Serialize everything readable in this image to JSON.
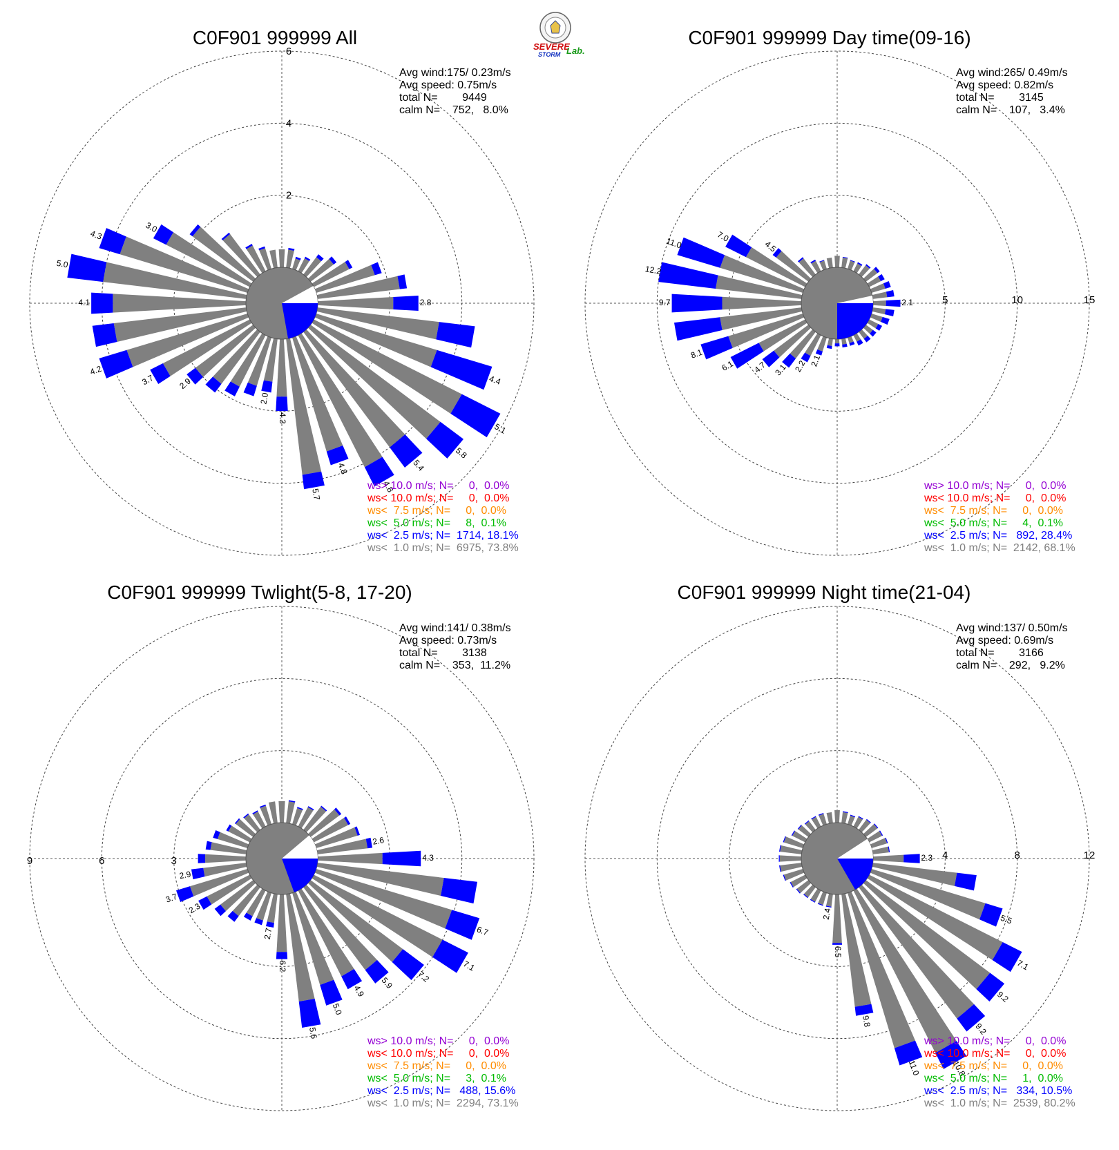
{
  "colors": {
    "calm": "#808080",
    "slow": "#808080",
    "ws25": "#0000ff",
    "ws50": "#00bb00",
    "ws75": "#ff8c00",
    "ws100": "#ff0000",
    "ws100plus": "#9400d3"
  },
  "logo": {
    "text_a": "SEVERE",
    "text_b": "STORM",
    "text_c": "Lab."
  },
  "chart_data": [
    {
      "type": "windrose",
      "title": "C0F901 999999 All",
      "stats": [
        "Avg wind:175/ 0.23m/s",
        "Avg speed: 0.75m/s",
        "total N=        9449",
        "calm N=    752,   8.0%"
      ],
      "legend": [
        "ws> 10.0 m/s; N=     0,  0.0%",
        "ws< 10.0 m/s; N=     0,  0.0%",
        "ws<  7.5 m/s; N=     0,  0.0%",
        "ws<  5.0 m/s; N=     8,  0.1%",
        "ws<  2.5 m/s; N=  1714, 18.1%",
        "ws<  1.0 m/s; N=  6975, 73.8%"
      ],
      "ring_max": 6,
      "ring_ticks": [
        2,
        4,
        6
      ],
      "ring_label_side": "top",
      "calm_pct": 8.0,
      "calm_blue_from": 90,
      "calm_blue_to": 170,
      "directions": [
        0,
        10,
        20,
        30,
        40,
        50,
        60,
        70,
        80,
        90,
        100,
        110,
        120,
        130,
        140,
        150,
        160,
        170,
        180,
        190,
        200,
        210,
        220,
        230,
        240,
        250,
        260,
        270,
        280,
        290,
        300,
        310,
        320,
        330,
        340,
        350
      ],
      "gray": [
        0.5,
        0.5,
        0.3,
        0.4,
        0.6,
        0.8,
        1.1,
        1.7,
        2.3,
        2.1,
        3.4,
        3.5,
        4.6,
        4.5,
        4.0,
        4.1,
        3.3,
        3.8,
        1.6,
        1.2,
        1.4,
        1.6,
        1.8,
        2.0,
        2.7,
        3.5,
        3.7,
        3.7,
        4.0,
        3.7,
        2.6,
        2.1,
        1.4,
        0.8,
        0.6,
        0.5
      ],
      "blue": [
        0.0,
        0.05,
        0.05,
        0.05,
        0.1,
        0.1,
        0.1,
        0.2,
        0.2,
        0.7,
        1.0,
        1.6,
        1.2,
        0.8,
        0.7,
        0.6,
        0.4,
        0.4,
        0.4,
        0.3,
        0.3,
        0.3,
        0.3,
        0.3,
        0.4,
        0.8,
        0.6,
        0.6,
        1.0,
        0.6,
        0.4,
        0.1,
        0.05,
        0.05,
        0.05,
        0.0
      ],
      "bar_labels": [
        [
          "90",
          "2.8"
        ],
        [
          "110",
          "4.4"
        ],
        [
          "120",
          "5.1"
        ],
        [
          "130",
          "5.8"
        ],
        [
          "140",
          "5.4"
        ],
        [
          "150",
          "4.8"
        ],
        [
          "160",
          "4.8"
        ],
        [
          "170",
          "5.7"
        ],
        [
          "180",
          "4.3"
        ],
        [
          "190",
          "2.0"
        ],
        [
          "230",
          "2.9"
        ],
        [
          "240",
          "3.7"
        ],
        [
          "250",
          "4.2"
        ],
        [
          "270",
          "4.1"
        ],
        [
          "280",
          "5.0"
        ],
        [
          "290",
          "4.3"
        ],
        [
          "300",
          "3.0"
        ]
      ]
    },
    {
      "type": "windrose",
      "title": "C0F901 999999 Day time(09-16)",
      "stats": [
        "Avg wind:265/ 0.49m/s",
        "Avg speed: 0.82m/s",
        "total N=        3145",
        "calm N=    107,   3.4%"
      ],
      "legend": [
        "ws> 10.0 m/s; N=     0,  0.0%",
        "ws< 10.0 m/s; N=     0,  0.0%",
        "ws<  7.5 m/s; N=     0,  0.0%",
        "ws<  5.0 m/s; N=     4,  0.1%",
        "ws<  2.5 m/s; N=   892, 28.4%",
        "ws<  1.0 m/s; N=  2142, 68.1%"
      ],
      "ring_max": 15,
      "ring_ticks": [
        5,
        10,
        15
      ],
      "ring_label_side": "right",
      "calm_pct": 3.4,
      "calm_blue_from": 90,
      "calm_blue_to": 180,
      "directions": [
        0,
        10,
        20,
        30,
        40,
        50,
        60,
        70,
        80,
        90,
        100,
        110,
        120,
        130,
        140,
        150,
        160,
        170,
        180,
        190,
        200,
        210,
        220,
        230,
        240,
        250,
        260,
        270,
        280,
        290,
        300,
        310,
        320,
        330,
        340,
        350
      ],
      "gray": [
        0.8,
        0.7,
        0.6,
        0.6,
        0.8,
        1.0,
        0.9,
        1.0,
        1.0,
        0.9,
        0.9,
        0.8,
        0.7,
        0.6,
        0.6,
        0.5,
        0.4,
        0.4,
        0.3,
        0.5,
        1.0,
        1.6,
        2.3,
        3.0,
        3.6,
        5.4,
        5.7,
        5.5,
        6.0,
        6.0,
        4.6,
        2.8,
        1.4,
        0.8,
        0.6,
        0.7
      ],
      "blue": [
        0.0,
        0.05,
        0.05,
        0.1,
        0.1,
        0.2,
        0.3,
        0.4,
        0.5,
        1.0,
        0.6,
        0.5,
        0.3,
        0.3,
        0.3,
        0.3,
        0.2,
        0.2,
        0.2,
        0.2,
        0.3,
        0.5,
        0.8,
        1.0,
        2.2,
        2.0,
        3.2,
        3.5,
        4.0,
        3.1,
        1.6,
        0.3,
        0.1,
        0.1,
        0.05,
        0.0
      ],
      "bar_labels": [
        [
          "90",
          "2.1"
        ],
        [
          "200",
          "2.1"
        ],
        [
          "210",
          "2.2"
        ],
        [
          "220",
          "3.1"
        ],
        [
          "230",
          "4.7"
        ],
        [
          "240",
          "6.1"
        ],
        [
          "250",
          "8.1"
        ],
        [
          "270",
          "9.7"
        ],
        [
          "280",
          "12.2"
        ],
        [
          "290",
          "11.0"
        ],
        [
          "300",
          "7.0"
        ],
        [
          "310",
          "4.5"
        ]
      ]
    },
    {
      "type": "windrose",
      "title": "C0F901 999999 Twlight(5-8, 17-20)",
      "stats": [
        "Avg wind:141/ 0.38m/s",
        "Avg speed: 0.73m/s",
        "total N=        3138",
        "calm N=    353,  11.2%"
      ],
      "legend": [
        "ws> 10.0 m/s; N=     0,  0.0%",
        "ws< 10.0 m/s; N=     0,  0.0%",
        "ws<  7.5 m/s; N=     0,  0.0%",
        "ws<  5.0 m/s; N=     3,  0.1%",
        "ws<  2.5 m/s; N=   488, 15.6%",
        "ws<  1.0 m/s; N=  2294, 73.1%"
      ],
      "ring_max": 9,
      "ring_ticks": [
        3,
        6,
        9
      ],
      "ring_label_side": "left",
      "calm_pct": 11.2,
      "calm_blue_from": 90,
      "calm_blue_to": 160,
      "directions": [
        0,
        10,
        20,
        30,
        40,
        50,
        60,
        70,
        80,
        90,
        100,
        110,
        120,
        130,
        140,
        150,
        160,
        170,
        180,
        190,
        200,
        210,
        220,
        230,
        240,
        250,
        260,
        270,
        280,
        290,
        300,
        310,
        320,
        330,
        340,
        350
      ],
      "gray": [
        0.9,
        0.9,
        0.7,
        0.9,
        1.2,
        1.5,
        1.6,
        1.8,
        2.1,
        2.7,
        5.3,
        5.9,
        6.0,
        4.8,
        4.3,
        4.0,
        4.0,
        4.5,
        2.4,
        1.2,
        1.2,
        1.2,
        1.5,
        1.7,
        2.0,
        2.5,
        1.8,
        1.7,
        1.5,
        1.3,
        1.0,
        0.9,
        0.8,
        0.7,
        0.8,
        0.9
      ],
      "blue": [
        0.0,
        0.05,
        0.05,
        0.05,
        0.05,
        0.1,
        0.1,
        0.1,
        0.2,
        1.6,
        1.4,
        1.2,
        1.2,
        1.1,
        0.7,
        0.6,
        0.9,
        1.1,
        0.3,
        0.2,
        0.2,
        0.2,
        0.3,
        0.3,
        0.4,
        0.6,
        0.5,
        0.3,
        0.2,
        0.2,
        0.1,
        0.05,
        0.05,
        0.05,
        0.05,
        0.0
      ],
      "bar_labels": [
        [
          "80",
          "2.6"
        ],
        [
          "90",
          "4.3"
        ],
        [
          "110",
          "6.7"
        ],
        [
          "120",
          "7.1"
        ],
        [
          "130",
          "7.2"
        ],
        [
          "140",
          "5.9"
        ],
        [
          "150",
          "4.9"
        ],
        [
          "160",
          "5.0"
        ],
        [
          "170",
          "5.6"
        ],
        [
          "180",
          "6.2"
        ],
        [
          "190",
          "2.7"
        ],
        [
          "240",
          "2.3"
        ],
        [
          "250",
          "3.7"
        ],
        [
          "260",
          "2.9"
        ]
      ]
    },
    {
      "type": "windrose",
      "title": "C0F901 999999 Night time(21-04)",
      "stats": [
        "Avg wind:137/ 0.50m/s",
        "Avg speed: 0.69m/s",
        "total N=        3166",
        "calm N=    292,   9.2%"
      ],
      "legend": [
        "ws> 10.0 m/s; N=     0,  0.0%",
        "ws< 10.0 m/s; N=     0,  0.0%",
        "ws<  7.5 m/s; N=     0,  0.0%",
        "ws<  5.0 m/s; N=     1,  0.0%",
        "ws<  2.5 m/s; N=   334, 10.5%",
        "ws<  1.0 m/s; N=  2539, 80.2%"
      ],
      "ring_max": 12,
      "ring_ticks": [
        4,
        8,
        12
      ],
      "ring_label_side": "right",
      "calm_pct": 9.2,
      "calm_blue_from": 90,
      "calm_blue_to": 150,
      "directions": [
        0,
        10,
        20,
        30,
        40,
        50,
        60,
        70,
        80,
        90,
        100,
        110,
        120,
        130,
        140,
        150,
        160,
        170,
        180,
        190,
        200,
        210,
        220,
        230,
        240,
        250,
        260,
        270,
        280,
        290,
        300,
        310,
        320,
        330,
        340,
        350
      ],
      "gray": [
        0.7,
        0.6,
        0.5,
        0.6,
        0.7,
        0.8,
        0.8,
        0.9,
        0.9,
        1.7,
        4.7,
        6.6,
        8.3,
        8.6,
        9.1,
        10.1,
        9.0,
        6.3,
        2.7,
        0.7,
        0.7,
        0.7,
        0.7,
        0.8,
        0.9,
        1.1,
        1.2,
        1.2,
        1.2,
        1.1,
        0.8,
        0.7,
        0.6,
        0.6,
        0.6,
        0.6
      ],
      "blue": [
        0.0,
        0.05,
        0.05,
        0.05,
        0.05,
        0.05,
        0.05,
        0.05,
        0.05,
        0.9,
        1.1,
        1.0,
        1.2,
        1.0,
        0.9,
        1.0,
        1.0,
        0.5,
        0.1,
        0.05,
        0.05,
        0.05,
        0.05,
        0.05,
        0.05,
        0.05,
        0.05,
        0.05,
        0.05,
        0.05,
        0.05,
        0.05,
        0.05,
        0.05,
        0.05,
        0.0
      ],
      "bar_labels": [
        [
          "90",
          "2.3"
        ],
        [
          "110",
          "5.5"
        ],
        [
          "120",
          "7.1"
        ],
        [
          "130",
          "9.2"
        ],
        [
          "140",
          "9.2"
        ],
        [
          "150",
          "10.8"
        ],
        [
          "160",
          "11.0"
        ],
        [
          "170",
          "9.8"
        ],
        [
          "180",
          "6.5"
        ],
        [
          "190",
          "2.4"
        ]
      ]
    }
  ]
}
